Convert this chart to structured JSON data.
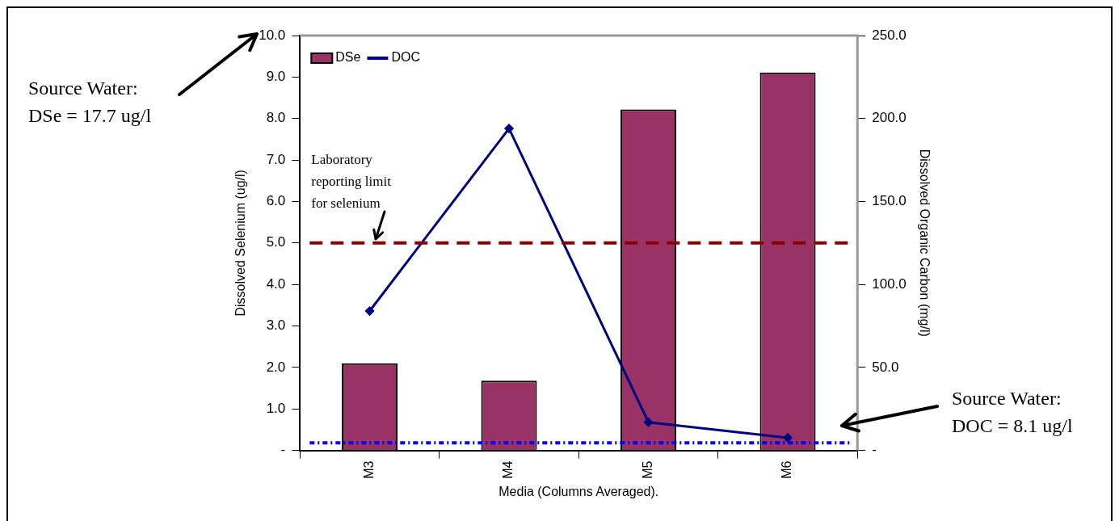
{
  "chart_data": {
    "type": "bar",
    "xlabel": "Media (Columns Averaged).",
    "ylabel": "Dissolved Selenium (ug/l)",
    "y2label": "Dissolved Organic Carbon (mg/l)",
    "categories": [
      "M3",
      "M4",
      "M5",
      "M6"
    ],
    "series": [
      {
        "name": "DSe",
        "color": "#993366",
        "values": [
          2.1,
          1.68,
          8.22,
          9.11
        ]
      },
      {
        "name": "DOC",
        "type": "line",
        "axis": "y2",
        "color": "#000080",
        "values": [
          84,
          194,
          17,
          7.6
        ],
        "marker": "diamond"
      }
    ],
    "ylim": [
      0,
      10
    ],
    "yticks": [
      {
        "value": 0,
        "label": "-"
      },
      {
        "value": 1,
        "label": "1.0"
      },
      {
        "value": 2,
        "label": "2.0"
      },
      {
        "value": 3,
        "label": "3.0"
      },
      {
        "value": 4,
        "label": "4.0"
      },
      {
        "value": 5,
        "label": "5.0"
      },
      {
        "value": 6,
        "label": "6.0"
      },
      {
        "value": 7,
        "label": "7.0"
      },
      {
        "value": 8,
        "label": "8.0"
      },
      {
        "value": 9,
        "label": "9.0"
      },
      {
        "value": 10,
        "label": "10.0"
      }
    ],
    "y2lim": [
      0,
      250
    ],
    "y2ticks": [
      {
        "value": 0,
        "label": "-"
      },
      {
        "value": 50,
        "label": "50.0"
      },
      {
        "value": 100,
        "label": "100.0"
      },
      {
        "value": 150,
        "label": "150.0"
      },
      {
        "value": 200,
        "label": "200.0"
      },
      {
        "value": 250,
        "label": "250.0"
      }
    ],
    "ref_lines": [
      {
        "axis": "y",
        "value": 5,
        "label": "Laboratory reporting limit for selenium",
        "color": "#8b0000",
        "line_style": "dashed"
      },
      {
        "axis": "y2",
        "value": 4.5,
        "label": null,
        "color": "#0000ff",
        "line_style": "dotted"
      }
    ],
    "annotations": [
      "Source Water:\nDSe = 17.7 ug/l",
      "Source Water:\nDOC = 8.1 ug/l"
    ],
    "legend": "top left",
    "grid": false
  }
}
